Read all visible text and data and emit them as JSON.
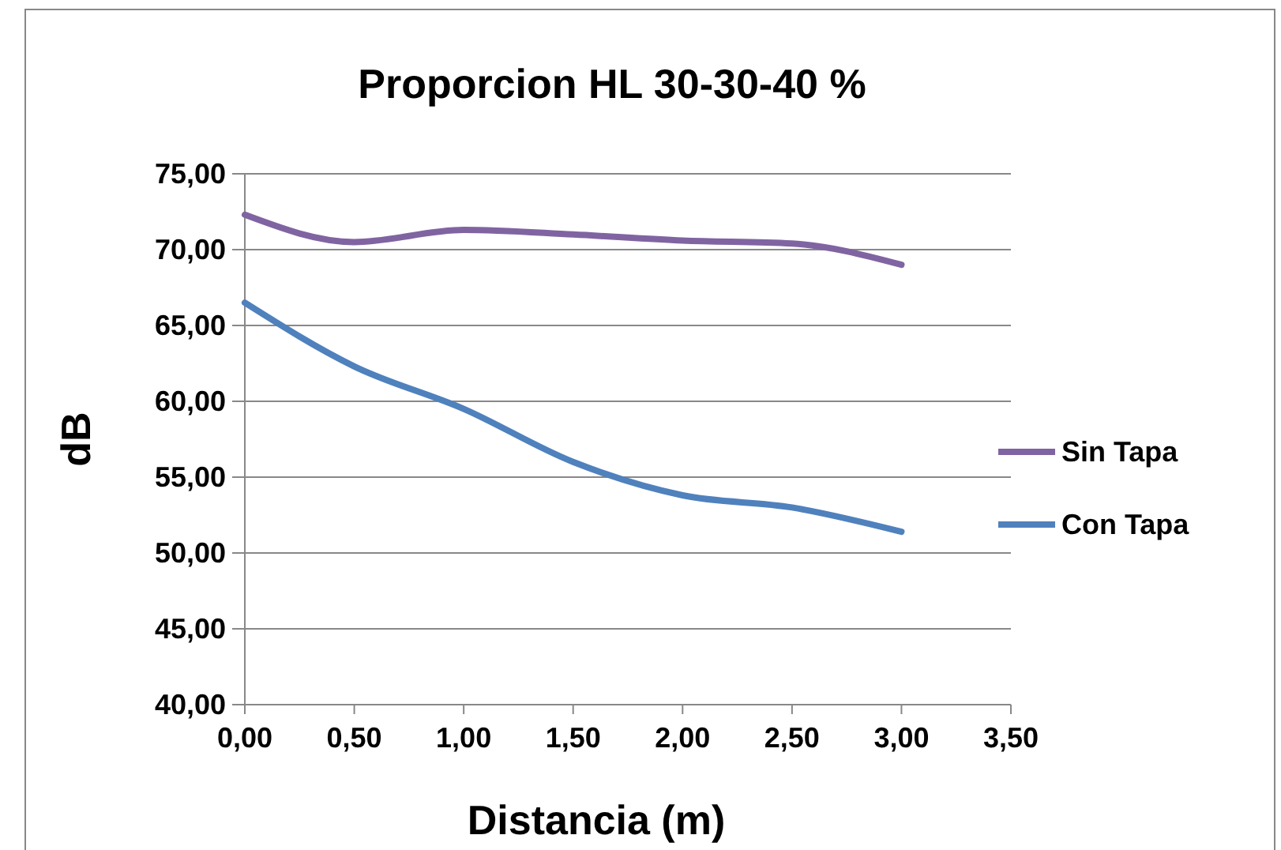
{
  "chart_data": {
    "type": "line",
    "title": "Proporcion HL 30-30-40 %",
    "xlabel": "Distancia (m)",
    "ylabel": "dB",
    "x": [
      0,
      0.5,
      1,
      1.5,
      2,
      2.5,
      3
    ],
    "series": [
      {
        "name": "Sin Tapa",
        "color": "#8064a2",
        "values": [
          72.3,
          70.5,
          71.3,
          71.0,
          70.6,
          70.4,
          69.0
        ]
      },
      {
        "name": "Con Tapa",
        "color": "#4f81bd",
        "values": [
          66.5,
          62.3,
          59.5,
          56.0,
          53.8,
          53.0,
          51.4
        ]
      }
    ],
    "xlim": [
      0,
      3.5
    ],
    "xticks": [
      {
        "value": 0,
        "label": "0,00"
      },
      {
        "value": 0.5,
        "label": "0,50"
      },
      {
        "value": 1,
        "label": "1,00"
      },
      {
        "value": 1.5,
        "label": "1,50"
      },
      {
        "value": 2,
        "label": "2,00"
      },
      {
        "value": 2.5,
        "label": "2,50"
      },
      {
        "value": 3,
        "label": "3,00"
      },
      {
        "value": 3.5,
        "label": "3,50"
      }
    ],
    "ylim": [
      40,
      75
    ],
    "yticks": [
      {
        "value": 40,
        "label": "40,00"
      },
      {
        "value": 45,
        "label": "45,00"
      },
      {
        "value": 50,
        "label": "50,00"
      },
      {
        "value": 55,
        "label": "55,00"
      },
      {
        "value": 60,
        "label": "60,00"
      },
      {
        "value": 65,
        "label": "65,00"
      },
      {
        "value": 70,
        "label": "70,00"
      },
      {
        "value": 75,
        "label": "75,00"
      }
    ],
    "grid": "y",
    "legend": "right",
    "marker": "none",
    "line_style": "solid"
  }
}
